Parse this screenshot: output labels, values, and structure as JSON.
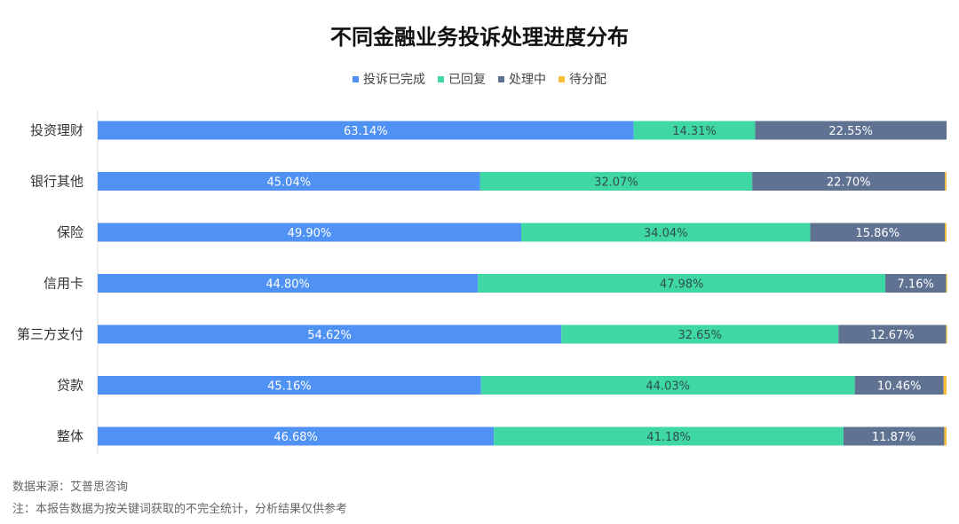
{
  "chart_data": {
    "type": "bar",
    "orientation": "horizontal",
    "stacked": true,
    "percent_stacked": true,
    "title": "不同金融业务投诉处理进度分布",
    "categories": [
      "投资理财",
      "银行其他",
      "保险",
      "信用卡",
      "第三方支付",
      "贷款",
      "整体"
    ],
    "series": [
      {
        "name": "投诉已完成",
        "color": "#4f92f3",
        "values": [
          63.14,
          45.04,
          49.9,
          44.8,
          54.62,
          45.16,
          46.68
        ]
      },
      {
        "name": "已回复",
        "color": "#3fd7a3",
        "values": [
          14.31,
          32.07,
          34.04,
          47.98,
          32.65,
          44.03,
          41.18
        ]
      },
      {
        "name": "处理中",
        "color": "#5f7292",
        "values": [
          22.55,
          22.7,
          15.86,
          7.16,
          12.67,
          10.46,
          11.87
        ]
      },
      {
        "name": "待分配",
        "color": "#f6c03a",
        "values": [
          0.0,
          0.19,
          0.2,
          0.06,
          0.06,
          0.35,
          0.27
        ]
      }
    ],
    "data_labels": [
      [
        "63.14%",
        "45.04%",
        "49.90%",
        "44.80%",
        "54.62%",
        "45.16%",
        "46.68%"
      ],
      [
        "14.31%",
        "32.07%",
        "34.04%",
        "47.98%",
        "32.65%",
        "44.03%",
        "41.18%"
      ],
      [
        "22.55%",
        "22.70%",
        "15.86%",
        "7.16%",
        "12.67%",
        "10.46%",
        "11.87%"
      ]
    ],
    "xlim": [
      0,
      100
    ],
    "legend_position": "top-center",
    "grid": false
  },
  "footer": {
    "source": "数据来源：艾普思咨询",
    "note": "注：本报告数据为按关键词获取的不完全统计，分析结果仅供参考"
  }
}
